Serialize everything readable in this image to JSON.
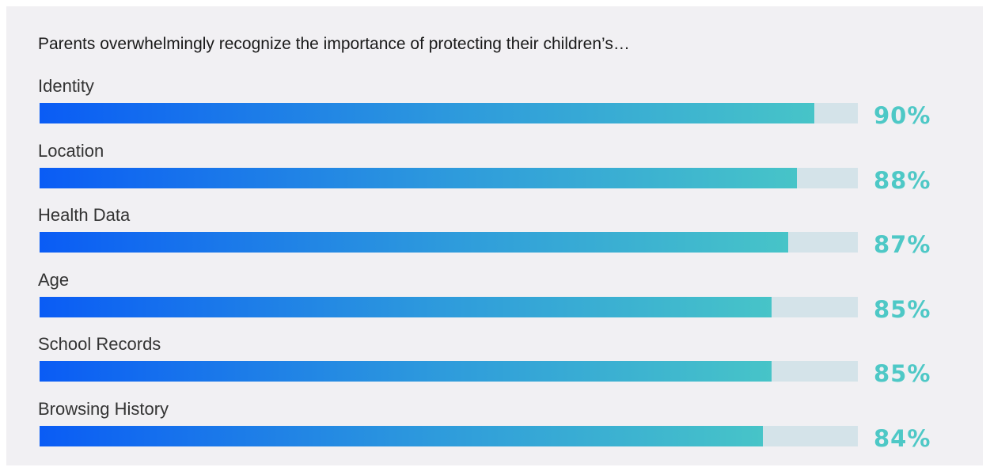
{
  "chart_data": {
    "type": "bar",
    "orientation": "horizontal",
    "title": "Parents overwhelmingly recognize the importance of protecting their children’s…",
    "categories": [
      "Identity",
      "Location",
      "Health Data",
      "Age",
      "School Records",
      "Browsing History"
    ],
    "values": [
      90,
      88,
      87,
      85,
      85,
      84
    ],
    "value_labels": [
      "90%",
      "88%",
      "87%",
      "85%",
      "85%",
      "84%"
    ],
    "xlim": [
      0,
      100
    ],
    "grid": false,
    "legend": "none",
    "colors": {
      "bar_start": "#0a5cf5",
      "bar_end": "#47c4c8",
      "track": "#d4e3e9",
      "value_text": "#4ec8c6",
      "background": "#f1f0f3"
    }
  }
}
